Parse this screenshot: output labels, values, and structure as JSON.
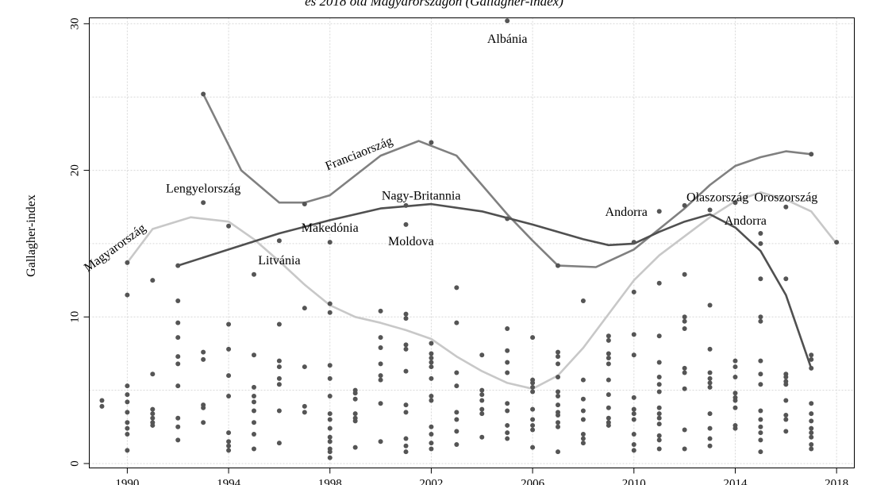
{
  "chart_data": {
    "type": "scatter",
    "title": "és 2018 óta Magyarországon (Gallagher-index)",
    "xlabel": "",
    "ylabel": "Gallagher-index",
    "xlim": [
      1988.5,
      2018.7
    ],
    "ylim": [
      -0.3,
      30.4
    ],
    "xticks": [
      1990,
      1994,
      1998,
      2002,
      2006,
      2010,
      2014,
      2018
    ],
    "yticks": [
      0,
      10,
      20,
      30
    ],
    "grid": true,
    "points": [
      [
        1989,
        4.3
      ],
      [
        1989,
        3.9
      ],
      [
        1990,
        13.7
      ],
      [
        1990,
        11.5
      ],
      [
        1990,
        5.3
      ],
      [
        1990,
        4.7
      ],
      [
        1990,
        4.2
      ],
      [
        1990,
        3.5
      ],
      [
        1990,
        2.8
      ],
      [
        1990,
        2.4
      ],
      [
        1990,
        2.0
      ],
      [
        1990,
        0.9
      ],
      [
        1991,
        12.5
      ],
      [
        1991,
        6.1
      ],
      [
        1991,
        3.7
      ],
      [
        1991,
        3.4
      ],
      [
        1991,
        3.1
      ],
      [
        1991,
        2.8
      ],
      [
        1991,
        2.6
      ],
      [
        1992,
        13.5
      ],
      [
        1992,
        11.1
      ],
      [
        1992,
        9.6
      ],
      [
        1992,
        8.6
      ],
      [
        1992,
        7.3
      ],
      [
        1992,
        6.8
      ],
      [
        1992,
        5.3
      ],
      [
        1992,
        3.1
      ],
      [
        1992,
        2.5
      ],
      [
        1992,
        1.6
      ],
      [
        1993,
        25.2
      ],
      [
        1993,
        17.8
      ],
      [
        1993,
        7.6
      ],
      [
        1993,
        7.1
      ],
      [
        1993,
        4.0
      ],
      [
        1993,
        3.8
      ],
      [
        1993,
        2.8
      ],
      [
        1994,
        16.2
      ],
      [
        1994,
        9.5
      ],
      [
        1994,
        7.8
      ],
      [
        1994,
        6.0
      ],
      [
        1994,
        4.6
      ],
      [
        1994,
        2.1
      ],
      [
        1994,
        1.5
      ],
      [
        1994,
        1.2
      ],
      [
        1994,
        0.9
      ],
      [
        1995,
        12.9
      ],
      [
        1995,
        7.4
      ],
      [
        1995,
        5.2
      ],
      [
        1995,
        4.6
      ],
      [
        1995,
        4.2
      ],
      [
        1995,
        3.6
      ],
      [
        1995,
        2.8
      ],
      [
        1995,
        2.0
      ],
      [
        1995,
        1.0
      ],
      [
        1996,
        15.2
      ],
      [
        1996,
        9.5
      ],
      [
        1996,
        7.0
      ],
      [
        1996,
        6.6
      ],
      [
        1996,
        5.8
      ],
      [
        1996,
        5.4
      ],
      [
        1996,
        3.6
      ],
      [
        1996,
        1.4
      ],
      [
        1997,
        17.7
      ],
      [
        1997,
        10.6
      ],
      [
        1997,
        6.6
      ],
      [
        1997,
        3.9
      ],
      [
        1997,
        3.5
      ],
      [
        1998,
        15.1
      ],
      [
        1998,
        10.9
      ],
      [
        1998,
        10.3
      ],
      [
        1998,
        6.7
      ],
      [
        1998,
        5.8
      ],
      [
        1998,
        4.6
      ],
      [
        1998,
        3.4
      ],
      [
        1998,
        3.0
      ],
      [
        1998,
        2.4
      ],
      [
        1998,
        1.8
      ],
      [
        1998,
        1.5
      ],
      [
        1998,
        1.0
      ],
      [
        1998,
        0.8
      ],
      [
        1998,
        0.4
      ],
      [
        1999,
        5.0
      ],
      [
        1999,
        4.8
      ],
      [
        1999,
        4.4
      ],
      [
        1999,
        3.4
      ],
      [
        1999,
        3.1
      ],
      [
        1999,
        2.9
      ],
      [
        1999,
        1.1
      ],
      [
        2000,
        10.4
      ],
      [
        2000,
        8.6
      ],
      [
        2000,
        7.9
      ],
      [
        2000,
        6.8
      ],
      [
        2000,
        6.0
      ],
      [
        2000,
        5.7
      ],
      [
        2000,
        4.1
      ],
      [
        2000,
        1.5
      ],
      [
        2001,
        17.6
      ],
      [
        2001,
        16.3
      ],
      [
        2001,
        10.2
      ],
      [
        2001,
        9.9
      ],
      [
        2001,
        8.1
      ],
      [
        2001,
        7.8
      ],
      [
        2001,
        6.3
      ],
      [
        2001,
        4.0
      ],
      [
        2001,
        3.5
      ],
      [
        2001,
        1.7
      ],
      [
        2001,
        1.2
      ],
      [
        2001,
        0.8
      ],
      [
        2002,
        21.9
      ],
      [
        2002,
        8.2
      ],
      [
        2002,
        7.5
      ],
      [
        2002,
        7.2
      ],
      [
        2002,
        6.9
      ],
      [
        2002,
        6.6
      ],
      [
        2002,
        5.8
      ],
      [
        2002,
        4.6
      ],
      [
        2002,
        4.3
      ],
      [
        2002,
        2.5
      ],
      [
        2002,
        2.0
      ],
      [
        2002,
        1.4
      ],
      [
        2002,
        1.0
      ],
      [
        2003,
        12.0
      ],
      [
        2003,
        9.6
      ],
      [
        2003,
        6.2
      ],
      [
        2003,
        5.3
      ],
      [
        2003,
        3.5
      ],
      [
        2003,
        3.0
      ],
      [
        2003,
        2.2
      ],
      [
        2003,
        1.3
      ],
      [
        2004,
        7.4
      ],
      [
        2004,
        5.0
      ],
      [
        2004,
        4.7
      ],
      [
        2004,
        4.3
      ],
      [
        2004,
        3.7
      ],
      [
        2004,
        3.4
      ],
      [
        2004,
        1.8
      ],
      [
        2005,
        30.2
      ],
      [
        2005,
        16.7
      ],
      [
        2005,
        9.2
      ],
      [
        2005,
        7.7
      ],
      [
        2005,
        6.9
      ],
      [
        2005,
        6.2
      ],
      [
        2005,
        4.1
      ],
      [
        2005,
        3.6
      ],
      [
        2005,
        2.6
      ],
      [
        2005,
        2.1
      ],
      [
        2005,
        1.7
      ],
      [
        2006,
        8.6
      ],
      [
        2006,
        5.7
      ],
      [
        2006,
        5.5
      ],
      [
        2006,
        5.2
      ],
      [
        2006,
        4.9
      ],
      [
        2006,
        3.7
      ],
      [
        2006,
        3.0
      ],
      [
        2006,
        2.6
      ],
      [
        2006,
        2.3
      ],
      [
        2006,
        1.1
      ],
      [
        2007,
        13.5
      ],
      [
        2007,
        7.6
      ],
      [
        2007,
        7.3
      ],
      [
        2007,
        6.8
      ],
      [
        2007,
        5.9
      ],
      [
        2007,
        4.9
      ],
      [
        2007,
        4.6
      ],
      [
        2007,
        4.0
      ],
      [
        2007,
        3.5
      ],
      [
        2007,
        3.3
      ],
      [
        2007,
        2.8
      ],
      [
        2007,
        2.5
      ],
      [
        2007,
        0.8
      ],
      [
        2008,
        11.1
      ],
      [
        2008,
        5.7
      ],
      [
        2008,
        4.4
      ],
      [
        2008,
        3.6
      ],
      [
        2008,
        3.0
      ],
      [
        2008,
        2.0
      ],
      [
        2008,
        1.7
      ],
      [
        2008,
        1.4
      ],
      [
        2009,
        8.7
      ],
      [
        2009,
        8.4
      ],
      [
        2009,
        7.5
      ],
      [
        2009,
        7.2
      ],
      [
        2009,
        6.8
      ],
      [
        2009,
        5.7
      ],
      [
        2009,
        4.7
      ],
      [
        2009,
        3.8
      ],
      [
        2009,
        3.1
      ],
      [
        2009,
        2.8
      ],
      [
        2009,
        2.6
      ],
      [
        2010,
        15.1
      ],
      [
        2010,
        11.7
      ],
      [
        2010,
        8.8
      ],
      [
        2010,
        7.4
      ],
      [
        2010,
        4.5
      ],
      [
        2010,
        3.7
      ],
      [
        2010,
        3.4
      ],
      [
        2010,
        3.0
      ],
      [
        2010,
        2.0
      ],
      [
        2010,
        1.3
      ],
      [
        2010,
        0.9
      ],
      [
        2011,
        17.2
      ],
      [
        2011,
        12.3
      ],
      [
        2011,
        8.7
      ],
      [
        2011,
        6.9
      ],
      [
        2011,
        5.9
      ],
      [
        2011,
        5.4
      ],
      [
        2011,
        4.9
      ],
      [
        2011,
        3.8
      ],
      [
        2011,
        3.4
      ],
      [
        2011,
        3.1
      ],
      [
        2011,
        2.7
      ],
      [
        2011,
        1.9
      ],
      [
        2011,
        1.6
      ],
      [
        2011,
        1.0
      ],
      [
        2012,
        17.6
      ],
      [
        2012,
        12.9
      ],
      [
        2012,
        10.0
      ],
      [
        2012,
        9.7
      ],
      [
        2012,
        9.2
      ],
      [
        2012,
        6.5
      ],
      [
        2012,
        6.2
      ],
      [
        2012,
        5.1
      ],
      [
        2012,
        2.3
      ],
      [
        2012,
        1.0
      ],
      [
        2013,
        17.3
      ],
      [
        2013,
        10.8
      ],
      [
        2013,
        7.8
      ],
      [
        2013,
        6.2
      ],
      [
        2013,
        5.8
      ],
      [
        2013,
        5.5
      ],
      [
        2013,
        5.2
      ],
      [
        2013,
        3.4
      ],
      [
        2013,
        2.4
      ],
      [
        2013,
        1.7
      ],
      [
        2013,
        1.2
      ],
      [
        2014,
        17.8
      ],
      [
        2014,
        7.0
      ],
      [
        2014,
        6.6
      ],
      [
        2014,
        5.9
      ],
      [
        2014,
        4.8
      ],
      [
        2014,
        4.5
      ],
      [
        2014,
        4.3
      ],
      [
        2014,
        3.8
      ],
      [
        2014,
        2.6
      ],
      [
        2014,
        2.4
      ],
      [
        2015,
        15.7
      ],
      [
        2015,
        15.0
      ],
      [
        2015,
        12.6
      ],
      [
        2015,
        10.0
      ],
      [
        2015,
        9.7
      ],
      [
        2015,
        7.0
      ],
      [
        2015,
        6.1
      ],
      [
        2015,
        5.4
      ],
      [
        2015,
        3.6
      ],
      [
        2015,
        3.0
      ],
      [
        2015,
        2.5
      ],
      [
        2015,
        2.1
      ],
      [
        2015,
        1.6
      ],
      [
        2015,
        0.8
      ],
      [
        2016,
        17.5
      ],
      [
        2016,
        12.6
      ],
      [
        2016,
        6.1
      ],
      [
        2016,
        5.9
      ],
      [
        2016,
        5.6
      ],
      [
        2016,
        5.4
      ],
      [
        2016,
        4.3
      ],
      [
        2016,
        3.3
      ],
      [
        2016,
        3.0
      ],
      [
        2016,
        2.2
      ],
      [
        2017,
        21.1
      ],
      [
        2017,
        7.4
      ],
      [
        2017,
        7.1
      ],
      [
        2017,
        6.5
      ],
      [
        2017,
        4.1
      ],
      [
        2017,
        3.4
      ],
      [
        2017,
        2.9
      ],
      [
        2017,
        2.4
      ],
      [
        2017,
        2.1
      ],
      [
        2017,
        1.8
      ],
      [
        2017,
        1.3
      ],
      [
        2017,
        1.0
      ],
      [
        2018,
        15.1
      ]
    ],
    "series": [
      {
        "name": "Magyarország",
        "color": "#c8c8c8",
        "x": [
          1990,
          1991,
          1992.5,
          1994,
          1995,
          1996,
          1997,
          1998,
          1999,
          2000,
          2001,
          2002,
          2003,
          2004,
          2005,
          2006,
          2007,
          2008,
          2009,
          2010,
          2011,
          2012,
          2013,
          2014,
          2015,
          2016,
          2017,
          2018
        ],
        "values": [
          13.7,
          16.0,
          16.8,
          16.5,
          15.3,
          13.8,
          12.2,
          10.8,
          10.0,
          9.6,
          9.1,
          8.5,
          7.3,
          6.3,
          5.5,
          5.1,
          6.0,
          7.9,
          10.2,
          12.5,
          14.2,
          15.5,
          16.8,
          17.9,
          18.5,
          18.0,
          17.2,
          15.0
        ]
      },
      {
        "name": "Franciaország",
        "color": "#808080",
        "x": [
          1993,
          1994.5,
          1996,
          1997,
          1998,
          2000,
          2001.5,
          2003,
          2004,
          2005,
          2006,
          2007,
          2008.5,
          2010,
          2011,
          2012,
          2013,
          2014,
          2015,
          2016,
          2017
        ],
        "values": [
          25.2,
          20.0,
          17.8,
          17.8,
          18.3,
          21.0,
          22.0,
          21.0,
          19.0,
          17.0,
          15.2,
          13.5,
          13.4,
          14.6,
          16.0,
          17.4,
          19.0,
          20.3,
          20.9,
          21.3,
          21.1
        ]
      },
      {
        "name": "Nagy-Britannia",
        "color": "#505050",
        "x": [
          1992,
          1994,
          1996,
          1998,
          2000,
          2002,
          2004,
          2006,
          2008,
          2009,
          2010,
          2011,
          2012,
          2013,
          2014,
          2015,
          2016,
          2017
        ],
        "values": [
          13.5,
          14.6,
          15.7,
          16.6,
          17.4,
          17.7,
          17.2,
          16.3,
          15.3,
          14.9,
          15.0,
          15.8,
          16.5,
          17.0,
          16.1,
          14.5,
          11.5,
          6.5
        ]
      }
    ],
    "annotations": [
      {
        "text": "Magyarország",
        "x": 1989.6,
        "y": 14.5,
        "rotate": -36
      },
      {
        "text": "Lengyelország",
        "x": 1993.0,
        "y": 18.5
      },
      {
        "text": "Franciaország",
        "x": 1999.2,
        "y": 20.9,
        "rotate": -22
      },
      {
        "text": "Nagy-Britannia",
        "x": 2001.6,
        "y": 18.0
      },
      {
        "text": "Makedónia",
        "x": 1998.0,
        "y": 15.8
      },
      {
        "text": "Moldova",
        "x": 2001.2,
        "y": 14.9
      },
      {
        "text": "Litvánia",
        "x": 1996.0,
        "y": 13.6
      },
      {
        "text": "Albánia",
        "x": 2005.0,
        "y": 28.7
      },
      {
        "text": "Andorra",
        "x": 2009.7,
        "y": 16.9
      },
      {
        "text": "Olaszország",
        "x": 2013.3,
        "y": 17.9
      },
      {
        "text": "Oroszország",
        "x": 2016.0,
        "y": 17.9
      },
      {
        "text": "Andorra",
        "x": 2014.4,
        "y": 16.3
      }
    ]
  }
}
